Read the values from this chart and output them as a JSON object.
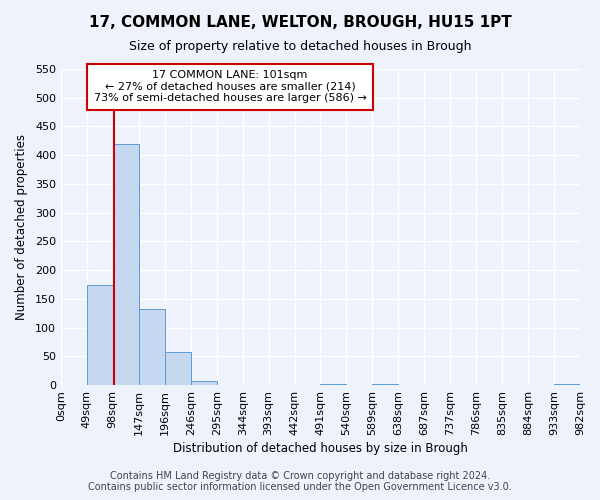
{
  "title": "17, COMMON LANE, WELTON, BROUGH, HU15 1PT",
  "subtitle": "Size of property relative to detached houses in Brough",
  "xlabel": "Distribution of detached houses by size in Brough",
  "ylabel": "Number of detached properties",
  "bin_edges": [
    0,
    49,
    98,
    147,
    196,
    246,
    295,
    344,
    393,
    442,
    491,
    540,
    589,
    638,
    687,
    737,
    786,
    835,
    884,
    933,
    982
  ],
  "bin_labels": [
    "0sqm",
    "49sqm",
    "98sqm",
    "147sqm",
    "196sqm",
    "246sqm",
    "295sqm",
    "344sqm",
    "393sqm",
    "442sqm",
    "491sqm",
    "540sqm",
    "589sqm",
    "638sqm",
    "687sqm",
    "737sqm",
    "786sqm",
    "835sqm",
    "884sqm",
    "933sqm",
    "982sqm"
  ],
  "counts": [
    0,
    175,
    420,
    133,
    58,
    7,
    0,
    0,
    0,
    0,
    2,
    0,
    1,
    0,
    0,
    0,
    0,
    0,
    0,
    2
  ],
  "bar_color": "#c5d8f0",
  "bar_edge_color": "#5b9bd5",
  "property_line_x": 101,
  "property_line_color": "#cc0000",
  "annotation_text": "17 COMMON LANE: 101sqm\n← 27% of detached houses are smaller (214)\n73% of semi-detached houses are larger (586) →",
  "annotation_box_color": "#ffffff",
  "annotation_box_edge_color": "#cc0000",
  "ylim": [
    0,
    550
  ],
  "yticks": [
    0,
    50,
    100,
    150,
    200,
    250,
    300,
    350,
    400,
    450,
    500,
    550
  ],
  "footer_line1": "Contains HM Land Registry data © Crown copyright and database right 2024.",
  "footer_line2": "Contains public sector information licensed under the Open Government Licence v3.0.",
  "background_color": "#eef2fa",
  "grid_color": "#ffffff",
  "title_fontsize": 11,
  "subtitle_fontsize": 9,
  "footer_fontsize": 7
}
